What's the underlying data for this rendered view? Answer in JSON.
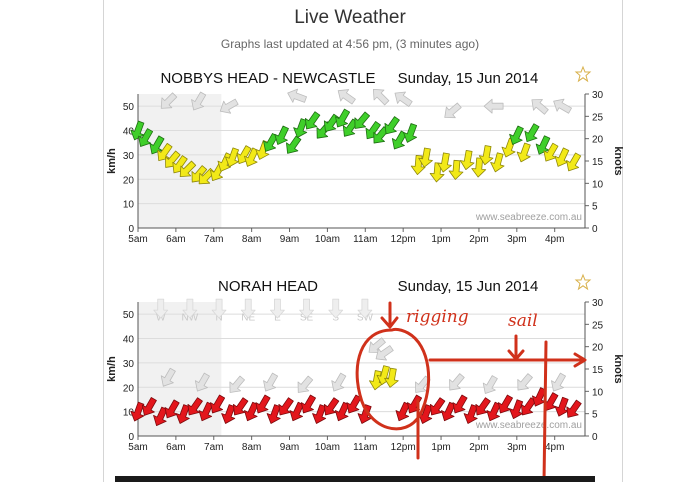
{
  "page": {
    "title": "Live Weather",
    "updated_text": "Graphs last updated at 4:56 pm, (3 minutes ago)"
  },
  "colors": {
    "strong": "#e3161c",
    "moderate": "#3fcf2a",
    "light": "#f2e918",
    "calm": "#cfcfcf",
    "annotation": "#d0311b"
  },
  "icons": [
    "favourite-star-icon",
    "wind-direction-arrow-icon"
  ],
  "chart_data": [
    {
      "type": "scatter",
      "title": "NOBBYS HEAD - NEWCASTLE",
      "date": "Sunday, 15 Jun 2014",
      "ylabel": "km/h",
      "y2label": "knots",
      "ylim": [
        0,
        55
      ],
      "y2lim": [
        0,
        30
      ],
      "yticks": [
        "0",
        "10",
        "20",
        "30",
        "40",
        "50"
      ],
      "y2ticks": [
        "0",
        "5",
        "10",
        "15",
        "20",
        "25",
        "30"
      ],
      "xlim": [
        5,
        16.8
      ],
      "xticks": [
        5,
        6,
        7,
        8,
        9,
        10,
        11,
        12,
        13,
        14,
        15,
        16
      ],
      "xtick_labels": [
        "5am",
        "6am",
        "7am",
        "8am",
        "9am",
        "10am",
        "11am",
        "12pm",
        "1pm",
        "2pm",
        "3pm",
        "4pm"
      ],
      "grid": true,
      "watermark": "www.seabreeze.com.au",
      "direction_labels": [],
      "gust_points": [
        [
          5.8,
          52,
          135
        ],
        [
          6.6,
          52,
          120
        ],
        [
          7.4,
          50,
          150
        ],
        [
          9.2,
          54,
          200
        ],
        [
          10.5,
          54,
          215
        ],
        [
          11.4,
          54,
          225
        ],
        [
          12.0,
          53,
          215
        ],
        [
          13.3,
          48,
          140
        ],
        [
          14.4,
          50,
          180
        ],
        [
          15.6,
          50,
          220
        ],
        [
          16.2,
          50,
          210
        ]
      ],
      "points": [
        [
          5.0,
          40,
          110,
          "moderate"
        ],
        [
          5.2,
          37,
          120,
          "moderate"
        ],
        [
          5.5,
          34,
          120,
          "moderate"
        ],
        [
          5.7,
          31,
          125,
          "light"
        ],
        [
          5.9,
          28,
          130,
          "light"
        ],
        [
          6.1,
          26,
          125,
          "light"
        ],
        [
          6.3,
          24,
          135,
          "light"
        ],
        [
          6.6,
          22,
          130,
          "light"
        ],
        [
          6.8,
          21,
          135,
          "light"
        ],
        [
          7.1,
          23,
          120,
          "light"
        ],
        [
          7.3,
          27,
          115,
          "light"
        ],
        [
          7.5,
          29,
          110,
          "light"
        ],
        [
          7.8,
          30,
          120,
          "light"
        ],
        [
          8.0,
          29,
          115,
          "light"
        ],
        [
          8.3,
          32,
          110,
          "light"
        ],
        [
          8.5,
          35,
          120,
          "moderate"
        ],
        [
          8.8,
          38,
          115,
          "moderate"
        ],
        [
          9.1,
          34,
          125,
          "moderate"
        ],
        [
          9.3,
          41,
          110,
          "moderate"
        ],
        [
          9.6,
          44,
          125,
          "moderate"
        ],
        [
          9.9,
          40,
          130,
          "moderate"
        ],
        [
          10.1,
          43,
          125,
          "moderate"
        ],
        [
          10.4,
          45,
          120,
          "moderate"
        ],
        [
          10.6,
          41,
          125,
          "moderate"
        ],
        [
          10.9,
          44,
          130,
          "moderate"
        ],
        [
          11.2,
          40,
          125,
          "moderate"
        ],
        [
          11.4,
          38,
          130,
          "moderate"
        ],
        [
          11.7,
          42,
          125,
          "moderate"
        ],
        [
          11.9,
          36,
          120,
          "moderate"
        ],
        [
          12.2,
          39,
          110,
          "moderate"
        ],
        [
          12.4,
          26,
          95,
          "light"
        ],
        [
          12.6,
          29,
          100,
          "light"
        ],
        [
          12.9,
          23,
          95,
          "light"
        ],
        [
          13.1,
          27,
          100,
          "light"
        ],
        [
          13.4,
          24,
          95,
          "light"
        ],
        [
          13.7,
          28,
          100,
          "light"
        ],
        [
          14.0,
          25,
          95,
          "light"
        ],
        [
          14.2,
          30,
          100,
          "light"
        ],
        [
          14.5,
          27,
          105,
          "light"
        ],
        [
          14.8,
          33,
          110,
          "light"
        ],
        [
          15.0,
          38,
          115,
          "moderate"
        ],
        [
          15.2,
          31,
          110,
          "light"
        ],
        [
          15.4,
          39,
          120,
          "moderate"
        ],
        [
          15.7,
          34,
          115,
          "moderate"
        ],
        [
          15.9,
          31,
          120,
          "light"
        ],
        [
          16.2,
          29,
          115,
          "light"
        ],
        [
          16.5,
          27,
          120,
          "light"
        ]
      ]
    },
    {
      "type": "scatter",
      "title": "NORAH HEAD",
      "date": "Sunday, 15 Jun 2014",
      "ylabel": "km/h",
      "y2label": "knots",
      "ylim": [
        0,
        55
      ],
      "y2lim": [
        0,
        30
      ],
      "yticks": [
        "0",
        "10",
        "20",
        "30",
        "40",
        "50"
      ],
      "y2ticks": [
        "0",
        "5",
        "10",
        "15",
        "20",
        "25",
        "30"
      ],
      "xlim": [
        5,
        16.8
      ],
      "xticks": [
        5,
        6,
        7,
        8,
        9,
        10,
        11,
        12,
        13,
        14,
        15,
        16
      ],
      "xtick_labels": [
        "5am",
        "6am",
        "7am",
        "8am",
        "9am",
        "10am",
        "11am",
        "12pm",
        "1pm",
        "2pm",
        "3pm",
        "4pm"
      ],
      "grid": true,
      "watermark": "www.seabreeze.com.au",
      "direction_labels": [
        "W",
        "NW",
        "N",
        "NE",
        "E",
        "SE",
        "S",
        "SW"
      ],
      "gust_points": [
        [
          5.8,
          24,
          120
        ],
        [
          6.7,
          22,
          120
        ],
        [
          7.6,
          21,
          130
        ],
        [
          8.5,
          22,
          120
        ],
        [
          9.4,
          21,
          130
        ],
        [
          10.3,
          22,
          120
        ],
        [
          11.3,
          37,
          140
        ],
        [
          11.5,
          34,
          145
        ],
        [
          12.5,
          21,
          130
        ],
        [
          13.4,
          22,
          130
        ],
        [
          14.3,
          21,
          120
        ],
        [
          15.2,
          22,
          130
        ],
        [
          16.1,
          22,
          120
        ]
      ],
      "points": [
        [
          5.0,
          10,
          110,
          "strong"
        ],
        [
          5.3,
          12,
          120,
          "strong"
        ],
        [
          5.6,
          8,
          115,
          "strong"
        ],
        [
          5.9,
          11,
          120,
          "strong"
        ],
        [
          6.2,
          9,
          110,
          "strong"
        ],
        [
          6.5,
          12,
          125,
          "strong"
        ],
        [
          6.8,
          10,
          115,
          "strong"
        ],
        [
          7.1,
          13,
          120,
          "strong"
        ],
        [
          7.4,
          9,
          110,
          "strong"
        ],
        [
          7.7,
          12,
          125,
          "strong"
        ],
        [
          8.0,
          10,
          115,
          "strong"
        ],
        [
          8.3,
          13,
          120,
          "strong"
        ],
        [
          8.6,
          9,
          110,
          "strong"
        ],
        [
          8.9,
          12,
          125,
          "strong"
        ],
        [
          9.2,
          10,
          115,
          "strong"
        ],
        [
          9.5,
          13,
          120,
          "strong"
        ],
        [
          9.8,
          9,
          110,
          "strong"
        ],
        [
          10.1,
          12,
          125,
          "strong"
        ],
        [
          10.4,
          10,
          115,
          "strong"
        ],
        [
          10.7,
          13,
          120,
          "strong"
        ],
        [
          11.0,
          9,
          110,
          "strong"
        ],
        [
          11.3,
          23,
          100,
          "light"
        ],
        [
          11.5,
          25,
          105,
          "light"
        ],
        [
          11.7,
          24,
          100,
          "light"
        ],
        [
          12.0,
          10,
          115,
          "strong"
        ],
        [
          12.3,
          13,
          120,
          "strong"
        ],
        [
          12.6,
          9,
          110,
          "strong"
        ],
        [
          12.9,
          12,
          125,
          "strong"
        ],
        [
          13.2,
          10,
          115,
          "strong"
        ],
        [
          13.5,
          13,
          120,
          "strong"
        ],
        [
          13.8,
          9,
          110,
          "strong"
        ],
        [
          14.1,
          12,
          125,
          "strong"
        ],
        [
          14.4,
          10,
          115,
          "strong"
        ],
        [
          14.7,
          13,
          120,
          "strong"
        ],
        [
          15.0,
          11,
          110,
          "strong"
        ],
        [
          15.3,
          12,
          125,
          "strong"
        ],
        [
          15.6,
          16,
          115,
          "strong"
        ],
        [
          15.9,
          14,
          120,
          "strong"
        ],
        [
          16.2,
          12,
          110,
          "strong"
        ],
        [
          16.5,
          11,
          125,
          "strong"
        ]
      ]
    }
  ],
  "annotations": [
    {
      "text": "rigging"
    },
    {
      "text": "sail"
    }
  ]
}
